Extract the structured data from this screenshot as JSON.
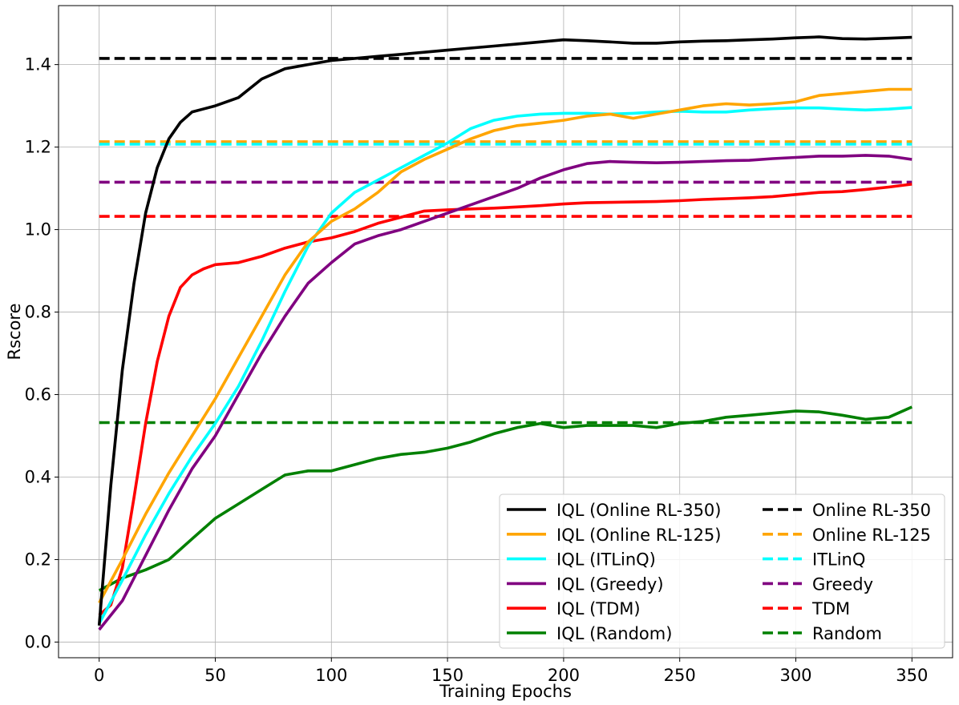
{
  "chart_data": {
    "type": "line",
    "title": "",
    "xlabel": "Training Epochs",
    "ylabel": "Rscore",
    "xlim": [
      -17.5,
      367.5
    ],
    "ylim": [
      -0.038,
      1.543
    ],
    "xticks": [
      0,
      50,
      100,
      150,
      200,
      250,
      300,
      350
    ],
    "yticks": [
      0.0,
      0.2,
      0.4,
      0.6,
      0.8,
      1.0,
      1.2,
      1.4
    ],
    "ytick_labels": [
      "0.0",
      "0.2",
      "0.4",
      "0.6",
      "0.8",
      "1.0",
      "1.2",
      "1.4"
    ],
    "grid": true,
    "legend_position": "lower-right",
    "legend_columns": 2,
    "series": [
      {
        "name": "IQL (Online RL-350)",
        "style": "solid",
        "color": "#000000",
        "x": [
          0,
          5,
          10,
          15,
          20,
          25,
          30,
          35,
          40,
          50,
          60,
          70,
          80,
          90,
          100,
          110,
          120,
          130,
          140,
          150,
          160,
          170,
          180,
          190,
          200,
          210,
          220,
          230,
          240,
          250,
          260,
          270,
          280,
          290,
          300,
          310,
          320,
          330,
          340,
          350
        ],
        "y": [
          0.04,
          0.38,
          0.66,
          0.87,
          1.04,
          1.15,
          1.22,
          1.26,
          1.285,
          1.3,
          1.32,
          1.365,
          1.39,
          1.4,
          1.41,
          1.415,
          1.42,
          1.425,
          1.43,
          1.435,
          1.44,
          1.445,
          1.45,
          1.455,
          1.46,
          1.458,
          1.455,
          1.452,
          1.452,
          1.455,
          1.457,
          1.458,
          1.46,
          1.462,
          1.465,
          1.467,
          1.463,
          1.462,
          1.464,
          1.466
        ]
      },
      {
        "name": "IQL (Online RL-125)",
        "style": "solid",
        "color": "#ffa500",
        "x": [
          0,
          10,
          20,
          30,
          40,
          50,
          60,
          70,
          80,
          90,
          100,
          110,
          120,
          130,
          140,
          150,
          160,
          170,
          180,
          190,
          200,
          210,
          220,
          230,
          240,
          250,
          260,
          270,
          280,
          290,
          300,
          310,
          320,
          330,
          340,
          350
        ],
        "y": [
          0.095,
          0.2,
          0.31,
          0.41,
          0.5,
          0.59,
          0.69,
          0.79,
          0.89,
          0.97,
          1.02,
          1.05,
          1.09,
          1.14,
          1.17,
          1.195,
          1.22,
          1.24,
          1.252,
          1.258,
          1.265,
          1.275,
          1.28,
          1.27,
          1.28,
          1.29,
          1.3,
          1.305,
          1.302,
          1.305,
          1.31,
          1.325,
          1.33,
          1.335,
          1.34,
          1.34
        ]
      },
      {
        "name": "IQL (ITLinQ)",
        "style": "solid",
        "color": "#00ffff",
        "x": [
          0,
          10,
          20,
          30,
          40,
          50,
          60,
          70,
          80,
          90,
          100,
          110,
          120,
          130,
          140,
          150,
          160,
          170,
          180,
          190,
          200,
          210,
          220,
          230,
          240,
          250,
          260,
          270,
          280,
          290,
          300,
          310,
          320,
          330,
          340,
          350
        ],
        "y": [
          0.045,
          0.15,
          0.26,
          0.36,
          0.45,
          0.53,
          0.62,
          0.73,
          0.85,
          0.96,
          1.04,
          1.09,
          1.12,
          1.15,
          1.18,
          1.21,
          1.245,
          1.265,
          1.275,
          1.28,
          1.282,
          1.282,
          1.28,
          1.282,
          1.285,
          1.287,
          1.285,
          1.285,
          1.29,
          1.293,
          1.295,
          1.295,
          1.292,
          1.29,
          1.292,
          1.296
        ]
      },
      {
        "name": "IQL (Greedy)",
        "style": "solid",
        "color": "#800080",
        "x": [
          0,
          10,
          20,
          30,
          40,
          50,
          60,
          70,
          80,
          90,
          100,
          110,
          120,
          130,
          140,
          150,
          160,
          170,
          180,
          190,
          200,
          210,
          220,
          230,
          240,
          250,
          260,
          270,
          280,
          290,
          300,
          310,
          320,
          330,
          340,
          350
        ],
        "y": [
          0.03,
          0.1,
          0.21,
          0.32,
          0.42,
          0.5,
          0.6,
          0.7,
          0.79,
          0.87,
          0.92,
          0.965,
          0.985,
          1.0,
          1.02,
          1.04,
          1.06,
          1.08,
          1.1,
          1.125,
          1.145,
          1.16,
          1.165,
          1.163,
          1.162,
          1.163,
          1.165,
          1.167,
          1.168,
          1.172,
          1.175,
          1.178,
          1.178,
          1.18,
          1.178,
          1.17
        ]
      },
      {
        "name": "IQL (TDM)",
        "style": "solid",
        "color": "#ff0000",
        "x": [
          0,
          5,
          10,
          15,
          20,
          25,
          30,
          35,
          40,
          45,
          50,
          60,
          70,
          80,
          90,
          100,
          110,
          120,
          130,
          140,
          150,
          160,
          170,
          180,
          190,
          200,
          210,
          220,
          230,
          240,
          250,
          260,
          270,
          280,
          290,
          300,
          310,
          320,
          330,
          340,
          350
        ],
        "y": [
          0.065,
          0.09,
          0.18,
          0.35,
          0.53,
          0.68,
          0.79,
          0.86,
          0.89,
          0.905,
          0.915,
          0.92,
          0.935,
          0.955,
          0.97,
          0.98,
          0.995,
          1.015,
          1.03,
          1.045,
          1.048,
          1.05,
          1.052,
          1.055,
          1.058,
          1.062,
          1.065,
          1.066,
          1.067,
          1.068,
          1.07,
          1.073,
          1.075,
          1.077,
          1.08,
          1.085,
          1.09,
          1.092,
          1.097,
          1.103,
          1.11
        ]
      },
      {
        "name": "IQL (Random)",
        "style": "solid",
        "color": "#008000",
        "x": [
          0,
          10,
          20,
          30,
          40,
          50,
          60,
          70,
          80,
          90,
          100,
          110,
          120,
          130,
          140,
          150,
          160,
          170,
          180,
          190,
          200,
          210,
          220,
          230,
          240,
          250,
          260,
          270,
          280,
          290,
          300,
          310,
          320,
          330,
          340,
          350
        ],
        "y": [
          0.125,
          0.155,
          0.175,
          0.2,
          0.25,
          0.3,
          0.335,
          0.37,
          0.405,
          0.415,
          0.415,
          0.43,
          0.445,
          0.455,
          0.46,
          0.47,
          0.485,
          0.505,
          0.52,
          0.53,
          0.52,
          0.525,
          0.525,
          0.525,
          0.52,
          0.53,
          0.535,
          0.545,
          0.55,
          0.555,
          0.56,
          0.558,
          0.55,
          0.54,
          0.545,
          0.57
        ]
      },
      {
        "name": "Online RL-350",
        "style": "dashed",
        "color": "#000000",
        "x": [
          0,
          350
        ],
        "y": [
          1.415,
          1.415
        ]
      },
      {
        "name": "Online RL-125",
        "style": "dashed",
        "color": "#ffa500",
        "x": [
          0,
          350
        ],
        "y": [
          1.213,
          1.213
        ]
      },
      {
        "name": "ITLinQ",
        "style": "dashed",
        "color": "#00ffff",
        "x": [
          0,
          350
        ],
        "y": [
          1.207,
          1.207
        ]
      },
      {
        "name": "Greedy",
        "style": "dashed",
        "color": "#800080",
        "x": [
          0,
          350
        ],
        "y": [
          1.115,
          1.115
        ]
      },
      {
        "name": "TDM",
        "style": "dashed",
        "color": "#ff0000",
        "x": [
          0,
          350
        ],
        "y": [
          1.032,
          1.032
        ]
      },
      {
        "name": "Random",
        "style": "dashed",
        "color": "#008000",
        "x": [
          0,
          350
        ],
        "y": [
          0.532,
          0.532
        ]
      }
    ]
  }
}
